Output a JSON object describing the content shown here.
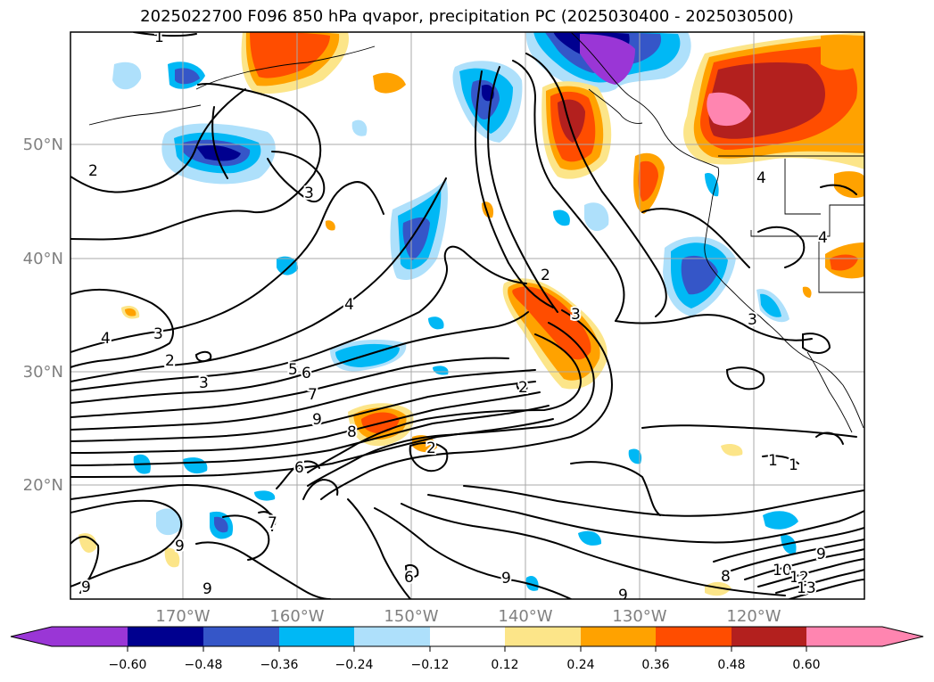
{
  "title": "2025022700 F096 850 hPa qvapor, precipitation PC (2025030400 - 2025030500)",
  "map": {
    "lon_labels": [
      "170°W",
      "160°W",
      "150°W",
      "140°W",
      "130°W",
      "120°W"
    ],
    "lat_labels": [
      "50°N",
      "40°N",
      "30°N",
      "20°N"
    ],
    "contour_labels": [
      "1",
      "2",
      "3",
      "4",
      "2",
      "3",
      "4",
      "3",
      "2",
      "3",
      "4",
      "5",
      "6",
      "7",
      "9",
      "8",
      "2",
      "6",
      "7",
      "9",
      "9",
      "9",
      "9",
      "9",
      "6",
      "1",
      "1",
      "2",
      "3",
      "4",
      "8",
      "10",
      "12",
      "13",
      "9"
    ]
  },
  "colorbar": {
    "tick_labels": [
      "−0.60",
      "−0.48",
      "−0.36",
      "−0.24",
      "−0.12",
      "0.12",
      "0.24",
      "0.36",
      "0.48",
      "0.60"
    ],
    "colors": [
      "#9a36d6",
      "#00008f",
      "#3556c8",
      "#00b8f5",
      "#aee0fb",
      "#ffffff",
      "#fce589",
      "#ffa200",
      "#ff4d00",
      "#b3201e",
      "#ff85b0"
    ],
    "extend": "both"
  },
  "gridline_color": "#a9a9a9",
  "tick_label_color": "#808080"
}
